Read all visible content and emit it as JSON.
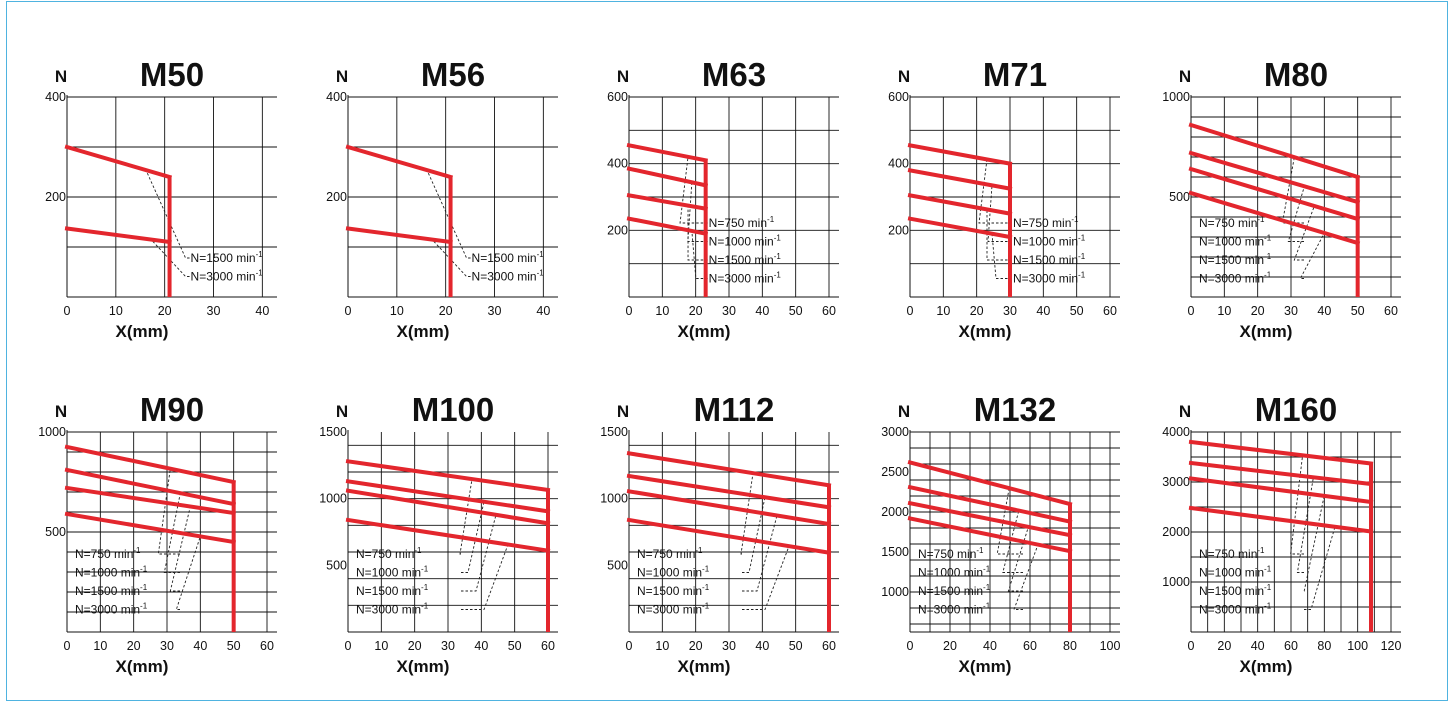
{
  "chart_data": [
    {
      "type": "line",
      "title": "M50",
      "ylabel": "N",
      "xlabel": "X(mm)",
      "xlim": [
        0,
        43
      ],
      "ylim": [
        0,
        400
      ],
      "xticks": [
        0,
        10,
        20,
        30,
        40
      ],
      "yticks": [
        200,
        400
      ],
      "ylines": [
        100,
        200,
        300,
        400
      ],
      "xlines": [
        10,
        20,
        30,
        40
      ],
      "xmax": 21,
      "series": [
        {
          "name": "N=1500 min-1",
          "x": [
            0,
            21
          ],
          "y": [
            300,
            240
          ]
        },
        {
          "name": "N=3000 min-1",
          "x": [
            0,
            21
          ],
          "y": [
            137,
            110
          ]
        }
      ]
    },
    {
      "type": "line",
      "title": "M56",
      "ylabel": "N",
      "xlabel": "X(mm)",
      "xlim": [
        0,
        43
      ],
      "ylim": [
        0,
        400
      ],
      "xticks": [
        0,
        10,
        20,
        30,
        40
      ],
      "yticks": [
        200,
        400
      ],
      "ylines": [
        100,
        200,
        300,
        400
      ],
      "xlines": [
        10,
        20,
        30,
        40
      ],
      "xmax": 21,
      "series": [
        {
          "name": "N=1500 min-1",
          "x": [
            0,
            21
          ],
          "y": [
            300,
            240
          ]
        },
        {
          "name": "N=3000 min-1",
          "x": [
            0,
            21
          ],
          "y": [
            137,
            110
          ]
        }
      ]
    },
    {
      "type": "line",
      "title": "M63",
      "ylabel": "N",
      "xlabel": "X(mm)",
      "xlim": [
        0,
        63
      ],
      "ylim": [
        0,
        600
      ],
      "xticks": [
        0,
        10,
        20,
        30,
        40,
        50,
        60
      ],
      "yticks": [
        200,
        400,
        600
      ],
      "ylines": [
        100,
        200,
        300,
        400,
        500,
        600
      ],
      "xlines": [
        10,
        20,
        30,
        40,
        50,
        60
      ],
      "xmax": 23,
      "series": [
        {
          "name": "N=750 min-1",
          "x": [
            0,
            23
          ],
          "y": [
            455,
            410
          ]
        },
        {
          "name": "N=1000 min-1",
          "x": [
            0,
            23
          ],
          "y": [
            385,
            335
          ]
        },
        {
          "name": "N=1500 min-1",
          "x": [
            0,
            23
          ],
          "y": [
            305,
            265
          ]
        },
        {
          "name": "N=3000 min-1",
          "x": [
            0,
            23
          ],
          "y": [
            235,
            190
          ]
        }
      ]
    },
    {
      "type": "line",
      "title": "M71",
      "ylabel": "N",
      "xlabel": "X(mm)",
      "xlim": [
        0,
        63
      ],
      "ylim": [
        0,
        600
      ],
      "xticks": [
        0,
        10,
        20,
        30,
        40,
        50,
        60
      ],
      "yticks": [
        200,
        400,
        600
      ],
      "ylines": [
        100,
        200,
        300,
        400,
        500,
        600
      ],
      "xlines": [
        10,
        20,
        30,
        40,
        50,
        60
      ],
      "xmax": 30,
      "series": [
        {
          "name": "N=750 min-1",
          "x": [
            0,
            30
          ],
          "y": [
            455,
            400
          ]
        },
        {
          "name": "N=1000 min-1",
          "x": [
            0,
            30
          ],
          "y": [
            380,
            325
          ]
        },
        {
          "name": "N=1500 min-1",
          "x": [
            0,
            30
          ],
          "y": [
            305,
            250
          ]
        },
        {
          "name": "N=3000 min-1",
          "x": [
            0,
            30
          ],
          "y": [
            235,
            180
          ]
        }
      ]
    },
    {
      "type": "line",
      "title": "M80",
      "ylabel": "N",
      "xlabel": "X(mm)",
      "xlim": [
        0,
        63
      ],
      "ylim": [
        0,
        1000
      ],
      "xticks": [
        0,
        10,
        20,
        30,
        40,
        50,
        60
      ],
      "yticks": [
        500,
        1000
      ],
      "ylines": [
        100,
        200,
        300,
        400,
        500,
        600,
        700,
        800,
        900,
        1000
      ],
      "xlines": [
        10,
        20,
        30,
        40,
        50,
        60
      ],
      "xmax": 50,
      "series": [
        {
          "name": "N=750 min-1",
          "x": [
            0,
            50
          ],
          "y": [
            860,
            600
          ]
        },
        {
          "name": "N=1000 min-1",
          "x": [
            0,
            50
          ],
          "y": [
            720,
            475
          ]
        },
        {
          "name": "N=1500 min-1",
          "x": [
            0,
            50
          ],
          "y": [
            640,
            390
          ]
        },
        {
          "name": "N=3000 min-1",
          "x": [
            0,
            50
          ],
          "y": [
            520,
            270
          ]
        }
      ]
    },
    {
      "type": "line",
      "title": "M90",
      "ylabel": "N",
      "xlabel": "X(mm)",
      "xlim": [
        0,
        63
      ],
      "ylim": [
        0,
        1000
      ],
      "xticks": [
        0,
        10,
        20,
        30,
        40,
        50,
        60
      ],
      "yticks": [
        500,
        1000
      ],
      "ylines": [
        100,
        200,
        300,
        400,
        500,
        600,
        700,
        800,
        900,
        1000
      ],
      "xlines": [
        10,
        20,
        30,
        40,
        50,
        60
      ],
      "xmax": 50,
      "series": [
        {
          "name": "N=750 min-1",
          "x": [
            0,
            50
          ],
          "y": [
            925,
            750
          ]
        },
        {
          "name": "N=1000 min-1",
          "x": [
            0,
            50
          ],
          "y": [
            810,
            640
          ]
        },
        {
          "name": "N=1500 min-1",
          "x": [
            0,
            50
          ],
          "y": [
            720,
            595
          ]
        },
        {
          "name": "N=3000 min-1",
          "x": [
            0,
            50
          ],
          "y": [
            590,
            450
          ]
        }
      ]
    },
    {
      "type": "line",
      "title": "M100",
      "ylabel": "N",
      "xlabel": "X(mm)",
      "xlim": [
        0,
        63
      ],
      "ylim": [
        0,
        1500
      ],
      "xticks": [
        0,
        10,
        20,
        30,
        40,
        50,
        60
      ],
      "yticks": [
        500,
        1000,
        1500
      ],
      "ylines": [
        200,
        400,
        600,
        800,
        1000,
        1200,
        1400
      ],
      "xlines": [
        10,
        20,
        30,
        40,
        50,
        60
      ],
      "xmax": 60,
      "series": [
        {
          "name": "N=750 min-1",
          "x": [
            0,
            60
          ],
          "y": [
            1280,
            1065
          ]
        },
        {
          "name": "N=1000 min-1",
          "x": [
            0,
            60
          ],
          "y": [
            1130,
            905
          ]
        },
        {
          "name": "N=1500 min-1",
          "x": [
            0,
            60
          ],
          "y": [
            1060,
            815
          ]
        },
        {
          "name": "N=3000 min-1",
          "x": [
            0,
            60
          ],
          "y": [
            840,
            610
          ]
        }
      ]
    },
    {
      "type": "line",
      "title": "M112",
      "ylabel": "N",
      "xlabel": "X(mm)",
      "xlim": [
        0,
        63
      ],
      "ylim": [
        0,
        1500
      ],
      "xticks": [
        0,
        10,
        20,
        30,
        40,
        50,
        60
      ],
      "yticks": [
        500,
        1000,
        1500
      ],
      "ylines": [
        200,
        400,
        600,
        800,
        1000,
        1200,
        1400
      ],
      "xlines": [
        10,
        20,
        30,
        40,
        50,
        60
      ],
      "xmax": 60,
      "series": [
        {
          "name": "N=750 min-1",
          "x": [
            0,
            60
          ],
          "y": [
            1340,
            1100
          ]
        },
        {
          "name": "N=1000 min-1",
          "x": [
            0,
            60
          ],
          "y": [
            1170,
            935
          ]
        },
        {
          "name": "N=1500 min-1",
          "x": [
            0,
            60
          ],
          "y": [
            1055,
            810
          ]
        },
        {
          "name": "N=3000 min-1",
          "x": [
            0,
            60
          ],
          "y": [
            840,
            595
          ]
        }
      ]
    },
    {
      "type": "line",
      "title": "M132",
      "ylabel": "N",
      "xlabel": "X(mm)",
      "xlim": [
        0,
        105
      ],
      "ylim": [
        500,
        3000
      ],
      "xticks": [
        0,
        20,
        40,
        60,
        80,
        100
      ],
      "yticks": [
        1000,
        1500,
        2000,
        2500,
        3000
      ],
      "ylines": [
        600,
        800,
        1000,
        1200,
        1400,
        1600,
        1800,
        2000,
        2200,
        2400,
        2600,
        2800,
        3000
      ],
      "xlines": [
        10,
        20,
        30,
        40,
        50,
        60,
        70,
        80,
        90,
        100
      ],
      "xmax": 80,
      "series": [
        {
          "name": "N=750 min-1",
          "x": [
            0,
            80
          ],
          "y": [
            2620,
            2100
          ]
        },
        {
          "name": "N=1000 min-1",
          "x": [
            0,
            80
          ],
          "y": [
            2310,
            1880
          ]
        },
        {
          "name": "N=1500 min-1",
          "x": [
            0,
            80
          ],
          "y": [
            2110,
            1710
          ]
        },
        {
          "name": "N=3000 min-1",
          "x": [
            0,
            80
          ],
          "y": [
            1920,
            1510
          ]
        }
      ]
    },
    {
      "type": "line",
      "title": "M160",
      "ylabel": "N",
      "xlabel": "X(mm)",
      "xlim": [
        0,
        126
      ],
      "ylim": [
        0,
        4000
      ],
      "xticks": [
        0,
        20,
        40,
        60,
        80,
        100,
        120
      ],
      "yticks": [
        1000,
        2000,
        3000,
        4000
      ],
      "ylines": [
        500,
        1000,
        1500,
        2000,
        2500,
        3000,
        3500,
        4000
      ],
      "xlines": [
        10,
        20,
        30,
        40,
        50,
        60,
        70,
        80,
        90,
        100,
        110,
        120
      ],
      "xmax": 108,
      "series": [
        {
          "name": "N=750 min-1",
          "x": [
            0,
            108
          ],
          "y": [
            3800,
            3370
          ]
        },
        {
          "name": "N=1000 min-1",
          "x": [
            0,
            108
          ],
          "y": [
            3380,
            2960
          ]
        },
        {
          "name": "N=1500 min-1",
          "x": [
            0,
            108
          ],
          "y": [
            3070,
            2600
          ]
        },
        {
          "name": "N=3000 min-1",
          "x": [
            0,
            108
          ],
          "y": [
            2480,
            2010
          ]
        }
      ]
    }
  ],
  "colors": {
    "curve": "#e3262d",
    "grid": "#111111",
    "frame": "#4fb3e0"
  }
}
